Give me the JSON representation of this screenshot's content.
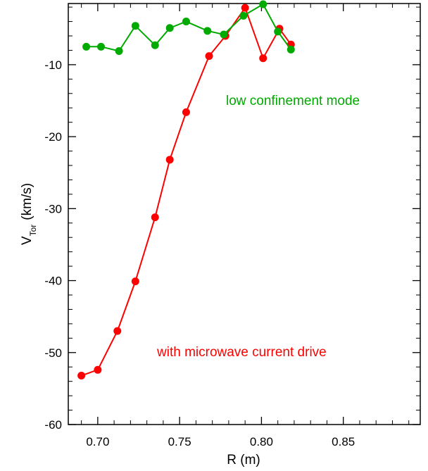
{
  "chart_data": {
    "type": "line",
    "xlabel": "R (m)",
    "ylabel_main": "V",
    "ylabel_sub": "Tor",
    "ylabel_units": "(km/s)",
    "xlim": [
      0.682,
      0.897
    ],
    "ylim": [
      -60,
      -1.5
    ],
    "xticks": [
      0.7,
      0.75,
      0.8,
      0.85
    ],
    "xtick_labels": [
      "0.70",
      "0.75",
      "0.80",
      "0.85"
    ],
    "yticks": [
      -10,
      -20,
      -30,
      -40,
      -50,
      -60
    ],
    "ytick_labels": [
      "-10",
      "-20",
      "-30",
      "-40",
      "-50",
      "-60"
    ],
    "grid": false,
    "series": [
      {
        "key": "red",
        "color": "#ff0000",
        "x": [
          0.69,
          0.7,
          0.712,
          0.723,
          0.735,
          0.744,
          0.754,
          0.768,
          0.778,
          0.79,
          0.801,
          0.811,
          0.818
        ],
        "y": [
          -53.2,
          -52.4,
          -47.0,
          -40.1,
          -31.2,
          -23.2,
          -16.6,
          -8.8,
          -6.0,
          -2.1,
          -9.1,
          -5.0,
          -7.2
        ]
      },
      {
        "key": "green",
        "color": "#00aa00",
        "x": [
          0.693,
          0.702,
          0.713,
          0.723,
          0.735,
          0.744,
          0.754,
          0.767,
          0.777,
          0.789,
          0.801,
          0.81,
          0.818
        ],
        "y": [
          -7.5,
          -7.5,
          -8.1,
          -4.6,
          -7.3,
          -4.9,
          -4.0,
          -5.3,
          -5.8,
          -3.2,
          -1.6,
          -5.4,
          -7.9
        ]
      }
    ],
    "annotations": [
      {
        "key": "green_label",
        "text": "low confinement mode",
        "color": "#00aa00"
      },
      {
        "key": "red_label",
        "text": "with microwave current drive",
        "color": "#ff0000"
      }
    ]
  }
}
